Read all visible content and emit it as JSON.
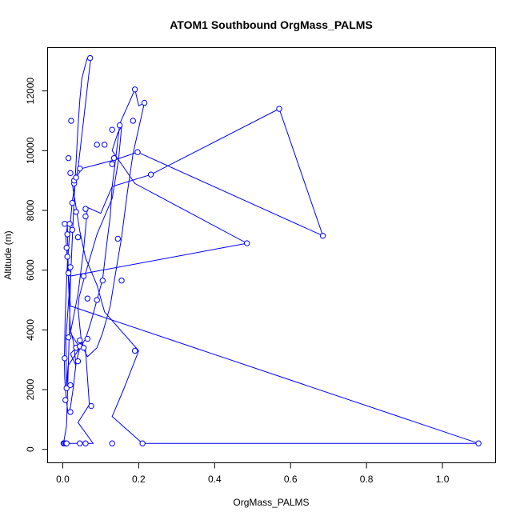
{
  "chart_data": {
    "type": "line",
    "title": "ATOM1 Southbound OrgMass_PALMS",
    "xlabel": "OrgMass_PALMS",
    "ylabel": "Altitude (m)",
    "xlim": [
      -0.04,
      1.14
    ],
    "ylim": [
      -450,
      13450
    ],
    "xticks": [
      0.0,
      0.2,
      0.4,
      0.6,
      0.8,
      1.0
    ],
    "xtick_labels": [
      "0.0",
      "0.2",
      "0.4",
      "0.6",
      "0.8",
      "1.0"
    ],
    "yticks": [
      0,
      2000,
      4000,
      6000,
      8000,
      10000,
      12000
    ],
    "ytick_labels": [
      "0",
      "2000",
      "4000",
      "6000",
      "8000",
      "10000",
      "12000"
    ],
    "grid": false,
    "legend": "none",
    "color": "#0000ff",
    "marker": "open-circle",
    "series": [
      {
        "x": [
          0.002,
          0.01,
          0.012,
          0.015,
          0.018,
          0.02,
          0.025,
          0.03,
          0.035,
          0.04,
          0.045,
          0.05,
          0.06,
          0.065,
          0.07,
          0.072,
          0.073,
          0.07,
          0.04,
          0.035,
          0.03,
          0.025,
          0.02,
          0.018,
          0.015,
          0.012,
          0.01,
          0.008,
          0.006,
          0.005,
          0.004,
          0.005,
          0.007,
          0.01,
          0.014,
          0.02,
          0.028,
          0.035,
          0.045,
          0.06,
          0.075,
          0.09,
          0.105,
          0.115,
          0.125,
          0.13,
          0.14,
          0.15,
          0.19,
          0.2,
          0.215,
          0.185,
          0.17,
          0.155,
          0.135,
          0.125,
          0.105,
          0.09,
          0.065,
          0.05,
          0.045,
          0.042,
          0.04,
          0.043,
          0.06,
          0.09,
          0.13,
          0.147,
          0.155,
          0.145,
          0.13,
          0.19,
          0.485,
          0.02,
          0.008,
          0.01,
          0.014,
          0.045,
          0.02,
          0.04,
          0.055,
          0.06,
          0.065,
          0.1,
          0.13,
          0.232,
          0.57,
          0.685,
          0.197,
          0.14,
          0.05,
          0.025,
          0.035,
          0.045,
          0.06,
          0.09,
          0.11,
          0.2,
          0.16,
          0.13,
          0.21,
          1.095,
          0.02,
          0.008,
          0.012,
          0.015,
          0.02,
          0.028,
          0.035,
          0.02,
          0.05,
          0.06,
          0.07,
          0.04,
          0.08,
          0.03,
          0.01
        ],
        "y": [
          200,
          800,
          1700,
          3000,
          4200,
          5600,
          7000,
          8400,
          9600,
          10800,
          11700,
          12400,
          12900,
          13100,
          13150,
          13120,
          13000,
          12700,
          9400,
          9100,
          8700,
          8300,
          7600,
          7200,
          6700,
          6200,
          5600,
          5000,
          4200,
          3600,
          3000,
          2400,
          2000,
          1600,
          1200,
          1400,
          2100,
          2900,
          3400,
          3700,
          4300,
          5000,
          5700,
          6800,
          7800,
          8800,
          9800,
          10900,
          12050,
          11500,
          11600,
          9900,
          8600,
          7100,
          5600,
          4800,
          3900,
          3400,
          3100,
          3500,
          4100,
          4500,
          4700,
          5100,
          5900,
          7200,
          8400,
          9700,
          10800,
          10600,
          10000,
          8900,
          6900,
          5800,
          3700,
          2100,
          2800,
          3400,
          3900,
          5200,
          6700,
          7400,
          8100,
          7900,
          8800,
          9200,
          11400,
          7150,
          9950,
          9700,
          9400,
          8900,
          8100,
          7300,
          6400,
          5500,
          4600,
          3300,
          2000,
          1100,
          200,
          200,
          4800,
          7100,
          7500,
          5600,
          4000,
          3600,
          2800,
          3200,
          3600,
          3300,
          1500,
          900,
          200,
          200,
          200
        ]
      }
    ],
    "markers": [
      {
        "x": 0.002,
        "y": 200
      },
      {
        "x": 0.005,
        "y": 200
      },
      {
        "x": 0.008,
        "y": 200
      },
      {
        "x": 0.01,
        "y": 200
      },
      {
        "x": 0.045,
        "y": 200
      },
      {
        "x": 0.06,
        "y": 200
      },
      {
        "x": 0.13,
        "y": 200
      },
      {
        "x": 0.21,
        "y": 200
      },
      {
        "x": 1.095,
        "y": 200
      },
      {
        "x": 0.02,
        "y": 1250
      },
      {
        "x": 0.075,
        "y": 1450
      },
      {
        "x": 0.007,
        "y": 1650
      },
      {
        "x": 0.01,
        "y": 2050
      },
      {
        "x": 0.02,
        "y": 2150
      },
      {
        "x": 0.04,
        "y": 2950
      },
      {
        "x": 0.005,
        "y": 3050
      },
      {
        "x": 0.19,
        "y": 3300
      },
      {
        "x": 0.035,
        "y": 3400
      },
      {
        "x": 0.045,
        "y": 3450
      },
      {
        "x": 0.055,
        "y": 3400
      },
      {
        "x": 0.065,
        "y": 3700
      },
      {
        "x": 0.015,
        "y": 3750
      },
      {
        "x": 0.045,
        "y": 3650
      },
      {
        "x": 0.09,
        "y": 5000
      },
      {
        "x": 0.065,
        "y": 5050
      },
      {
        "x": 0.105,
        "y": 5650
      },
      {
        "x": 0.155,
        "y": 5650
      },
      {
        "x": 0.055,
        "y": 5800
      },
      {
        "x": 0.015,
        "y": 5900
      },
      {
        "x": 0.02,
        "y": 6100
      },
      {
        "x": 0.012,
        "y": 6450
      },
      {
        "x": 0.01,
        "y": 6750
      },
      {
        "x": 0.485,
        "y": 6900
      },
      {
        "x": 0.145,
        "y": 7050
      },
      {
        "x": 0.04,
        "y": 7100
      },
      {
        "x": 0.685,
        "y": 7150
      },
      {
        "x": 0.012,
        "y": 7200
      },
      {
        "x": 0.025,
        "y": 7350
      },
      {
        "x": 0.018,
        "y": 7550
      },
      {
        "x": 0.005,
        "y": 7550
      },
      {
        "x": 0.06,
        "y": 7800
      },
      {
        "x": 0.035,
        "y": 7950
      },
      {
        "x": 0.06,
        "y": 8050
      },
      {
        "x": 0.025,
        "y": 8250
      },
      {
        "x": 0.03,
        "y": 8900
      },
      {
        "x": 0.03,
        "y": 9000
      },
      {
        "x": 0.035,
        "y": 9100
      },
      {
        "x": 0.232,
        "y": 9200
      },
      {
        "x": 0.02,
        "y": 9250
      },
      {
        "x": 0.045,
        "y": 9400
      },
      {
        "x": 0.13,
        "y": 9550
      },
      {
        "x": 0.135,
        "y": 9750
      },
      {
        "x": 0.015,
        "y": 9750
      },
      {
        "x": 0.197,
        "y": 9950
      },
      {
        "x": 0.09,
        "y": 10200
      },
      {
        "x": 0.11,
        "y": 10200
      },
      {
        "x": 0.13,
        "y": 10700
      },
      {
        "x": 0.15,
        "y": 10850
      },
      {
        "x": 0.185,
        "y": 11000
      },
      {
        "x": 0.022,
        "y": 11000
      },
      {
        "x": 0.57,
        "y": 11400
      },
      {
        "x": 0.215,
        "y": 11600
      },
      {
        "x": 0.19,
        "y": 12050
      },
      {
        "x": 0.072,
        "y": 13100
      }
    ]
  }
}
